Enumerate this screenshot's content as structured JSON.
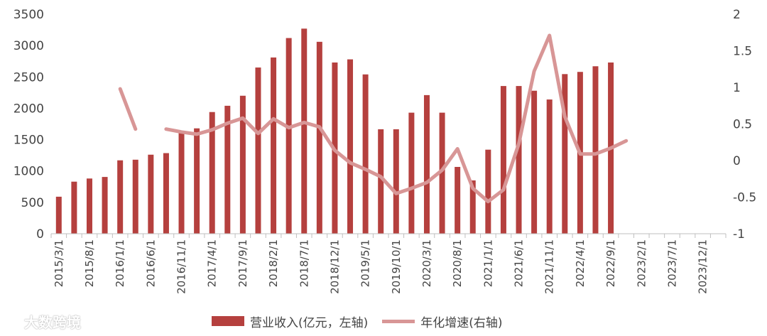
{
  "chart_data": {
    "type": "bar+line",
    "categories": [
      "2015/3/1",
      "2015/5/1",
      "2015/8/1",
      "2015/10/1",
      "2016/1/1",
      "2016/3/1",
      "2016/6/1",
      "2016/8/1",
      "2016/11/1",
      "2017/1/1",
      "2017/4/1",
      "2017/6/1",
      "2017/9/1",
      "2017/11/1",
      "2018/2/1",
      "2018/4/1",
      "2018/7/1",
      "2018/9/1",
      "2018/12/1",
      "2019/2/1",
      "2019/5/1",
      "2019/7/1",
      "2019/10/1",
      "2019/12/1",
      "2020/3/1",
      "2020/5/1",
      "2020/8/1",
      "2020/10/1",
      "2021/1/1",
      "2021/3/1",
      "2021/6/1",
      "2021/8/1",
      "2021/11/1",
      "2022/1/1",
      "2022/4/1",
      "2022/6/1",
      "2022/9/1",
      "2022/11/1",
      "2023/2/1",
      "2023/4/1",
      "2023/7/1",
      "2023/9/1",
      "2023/12/1",
      "2024/2/1"
    ],
    "x_tick_labels": [
      "2015/3/1",
      "2015/8/1",
      "2016/1/1",
      "2016/6/1",
      "2016/11/1",
      "2017/4/1",
      "2017/9/1",
      "2018/2/1",
      "2018/7/1",
      "2018/12/1",
      "2019/5/1",
      "2019/10/1",
      "2020/3/1",
      "2020/8/1",
      "2021/1/1",
      "2021/6/1",
      "2021/11/1",
      "2022/4/1",
      "2022/9/1",
      "2023/2/1",
      "2023/7/1",
      "2023/12/1"
    ],
    "series": [
      {
        "name": "营业收入(亿元，左轴)",
        "type": "bar",
        "axis": "left",
        "color": "#b5403e",
        "values": [
          590,
          830,
          880,
          905,
          1170,
          1180,
          1260,
          1285,
          1610,
          1680,
          1940,
          2040,
          2200,
          2650,
          2810,
          3120,
          3270,
          3060,
          2730,
          2780,
          2540,
          1665,
          1665,
          1930,
          2210,
          1930,
          1065,
          850,
          1340,
          2355,
          2355,
          2280,
          2140,
          2545,
          2580,
          2670,
          2730,
          null,
          null,
          null,
          null,
          null,
          null,
          null
        ]
      },
      {
        "name": "年化增速(右轴)",
        "type": "line",
        "axis": "right",
        "color": "#d89696",
        "values": [
          null,
          null,
          null,
          null,
          0.98,
          0.43,
          null,
          0.43,
          0.39,
          0.36,
          0.42,
          0.51,
          0.58,
          0.37,
          0.57,
          0.45,
          0.52,
          0.46,
          0.14,
          -0.03,
          -0.12,
          -0.22,
          -0.45,
          -0.38,
          -0.3,
          -0.13,
          0.16,
          -0.38,
          -0.56,
          -0.4,
          0.23,
          1.22,
          1.71,
          0.6,
          0.09,
          0.09,
          0.17,
          0.27,
          null,
          null,
          null,
          null,
          null,
          null
        ]
      }
    ],
    "y_left": {
      "ticks": [
        "0",
        "500",
        "1000",
        "1500",
        "2000",
        "2500",
        "3000",
        "3500"
      ],
      "min": 0,
      "max": 3500
    },
    "y_right": {
      "ticks": [
        "-1",
        "-0.5",
        "0",
        "0.5",
        "1",
        "1.5",
        "2"
      ],
      "min": -1,
      "max": 2
    },
    "grid": false,
    "legend_position": "bottom"
  },
  "legend": {
    "bar_label": "营业收入(亿元，左轴)",
    "line_label": "年化增速(右轴)",
    "bar_color": "#b5403e",
    "line_color": "#d89696"
  },
  "watermark": {
    "text": "大数跨境"
  }
}
